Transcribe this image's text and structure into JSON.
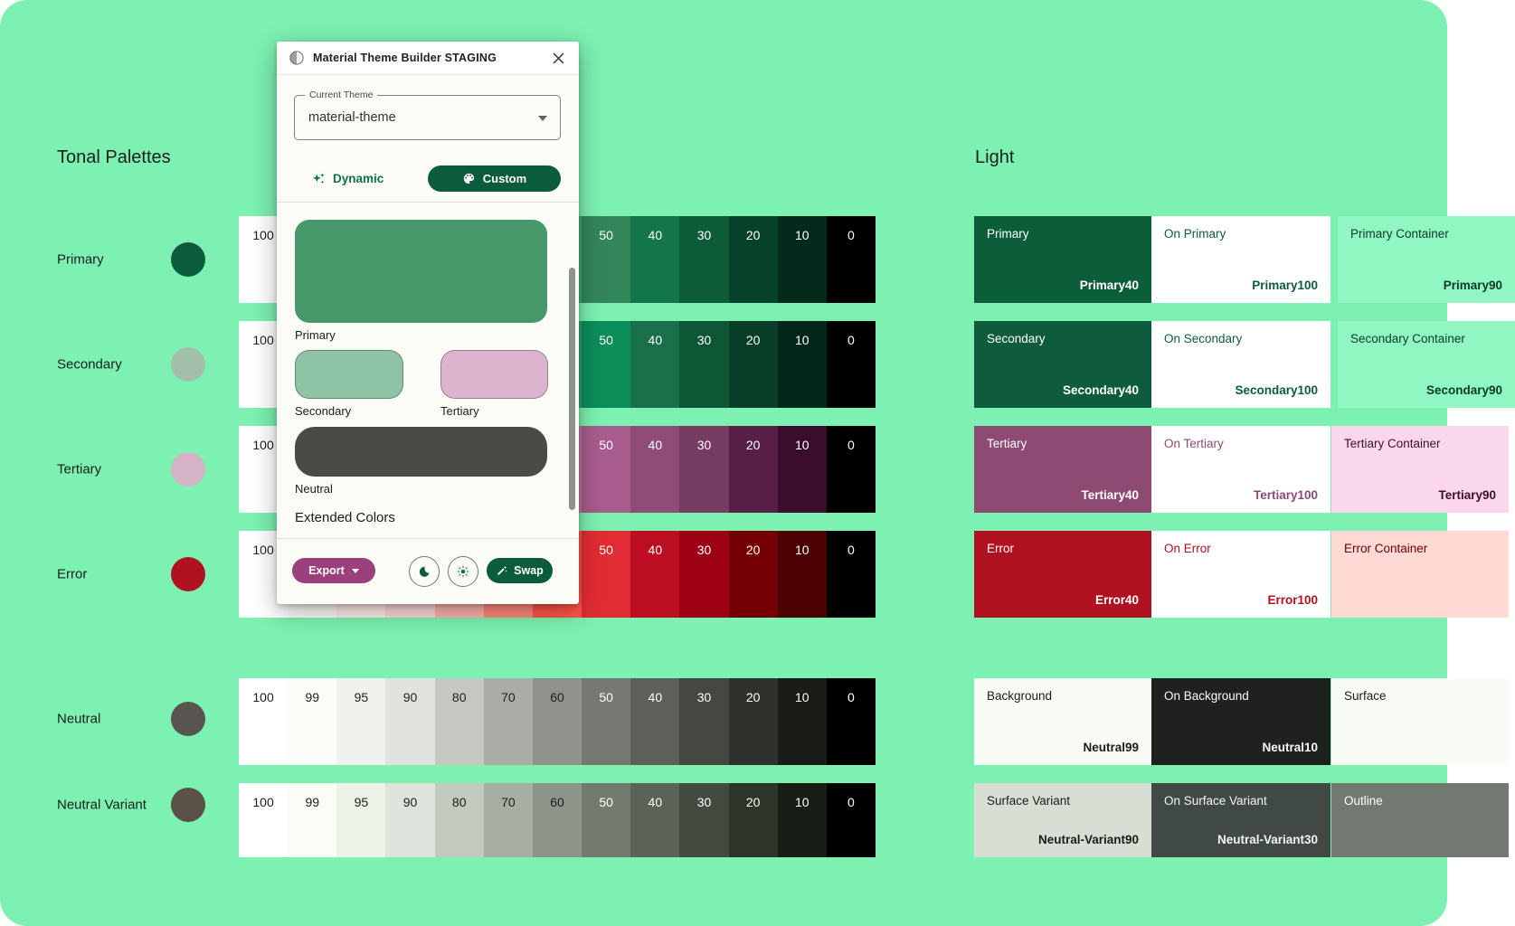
{
  "headings": {
    "tonal": "Tonal Palettes",
    "light": "Light"
  },
  "tones": [
    "100",
    "99",
    "95",
    "90",
    "80",
    "70",
    "60",
    "50",
    "40",
    "30",
    "20",
    "10",
    "0"
  ],
  "palettes": [
    {
      "label": "Primary",
      "dot": "#0B5D3B",
      "colors": [
        "#FFFFFF",
        "#F6FFF2",
        "#DCF7E3",
        "#AEF2C8",
        "#7DE5A9",
        "#57C98B",
        "#3AAD74",
        "#338659",
        "#13754A",
        "#0C5B39",
        "#06422A",
        "#032A1B",
        "#000000"
      ]
    },
    {
      "label": "Secondary",
      "dot": "#A3BFAA",
      "colors": [
        "#FFFFFF",
        "#F6FFF2",
        "#DFF6E5",
        "#BCEECC",
        "#93D8AD",
        "#66BD8C",
        "#2FA571",
        "#0C8E5B",
        "#19704A",
        "#0D5737",
        "#083E27",
        "#03271A",
        "#000000"
      ]
    },
    {
      "label": "Tertiary",
      "dot": "#D3B3C5",
      "colors": [
        "#FFFFFF",
        "#FFF5FA",
        "#FFE4F3",
        "#FFD4EC",
        "#F0B0D8",
        "#D394BC",
        "#BD78A5",
        "#A85D8E",
        "#8F4C78",
        "#763B61",
        "#571F45",
        "#3A0D2C",
        "#000000"
      ]
    },
    {
      "label": "Error",
      "dot": "#B11221",
      "colors": [
        "#FFFFFF",
        "#FFFBFA",
        "#FFEDEA",
        "#FFDAD6",
        "#FFB4AB",
        "#FF897D",
        "#FF5449",
        "#E22C33",
        "#BC0D23",
        "#9C0012",
        "#740006",
        "#4B0002",
        "#000000"
      ]
    },
    {
      "label": "Neutral",
      "dot": "#595551",
      "colors": [
        "#FFFFFF",
        "#FBFDF8",
        "#F0F1EC",
        "#E2E3DE",
        "#C6C7C1",
        "#ABACA6",
        "#91928C",
        "#777871",
        "#5E5F59",
        "#464741",
        "#30312C",
        "#1B1C18",
        "#000000"
      ]
    },
    {
      "label": "Neutral Variant",
      "dot": "#5B5146",
      "colors": [
        "#FFFFFF",
        "#F9FDF6",
        "#EDF2E9",
        "#DEE4DB",
        "#C2C9BF",
        "#A7AEA3",
        "#8D9489",
        "#737B6F",
        "#5B6257",
        "#434A3F",
        "#2D342A",
        "#181E15",
        "#000000"
      ]
    }
  ],
  "scheme": {
    "rows": [
      {
        "cells": [
          {
            "title": "Primary",
            "tone": "Primary40",
            "bg": "#0C5E3B",
            "fg": "#FFFFFF"
          },
          {
            "title": "On Primary",
            "tone": "Primary100",
            "bg": "#FFFFFF",
            "fg": "#0B5D3B"
          },
          {
            "title": "Primary Container",
            "tone": "Primary90",
            "bg": "#90F6C2",
            "fg": "#0A3B25"
          }
        ]
      },
      {
        "cells": [
          {
            "title": "Secondary",
            "tone": "Secondary40",
            "bg": "#0E5C3D",
            "fg": "#FFFFFF"
          },
          {
            "title": "On Secondary",
            "tone": "Secondary100",
            "bg": "#FFFFFF",
            "fg": "#0B5D3B"
          },
          {
            "title": "Secondary Container",
            "tone": "Secondary90",
            "bg": "#90F6C2",
            "fg": "#0A3B25"
          }
        ]
      },
      {
        "cells": [
          {
            "title": "Tertiary",
            "tone": "Tertiary40",
            "bg": "#8D4A73",
            "fg": "#FFFFFF"
          },
          {
            "title": "On Tertiary",
            "tone": "Tertiary100",
            "bg": "#FFFFFF",
            "fg": "#8D4A73"
          },
          {
            "title": "Tertiary Container",
            "tone": "Tertiary90",
            "bg": "#FBD7EB",
            "fg": "#3E0F2E"
          }
        ]
      },
      {
        "cells": [
          {
            "title": "Error",
            "tone": "Error40",
            "bg": "#B11221",
            "fg": "#FFFFFF"
          },
          {
            "title": "On Error",
            "tone": "Error100",
            "bg": "#FFFFFF",
            "fg": "#B11221"
          },
          {
            "title": "Error Container",
            "tone": "",
            "bg": "#FFD9D3",
            "fg": "#67000B"
          }
        ]
      },
      {
        "cells": [
          {
            "title": "Background",
            "tone": "Neutral99",
            "bg": "#F8FCF4",
            "fg": "#1A1C19"
          },
          {
            "title": "On Background",
            "tone": "Neutral10",
            "bg": "#1E211D",
            "fg": "#FAFAF8"
          },
          {
            "title": "Surface",
            "tone": "",
            "bg": "#F8FCF4",
            "fg": "#1A1C19"
          }
        ]
      },
      {
        "cells": [
          {
            "title": "Surface Variant",
            "tone": "Neutral-Variant90",
            "bg": "#D9DED5",
            "fg": "#1A1C19"
          },
          {
            "title": "On Surface Variant",
            "tone": "Neutral-Variant30",
            "bg": "#414944",
            "fg": "#F4F5F2"
          },
          {
            "title": "Outline",
            "tone": "",
            "bg": "#717971",
            "fg": "#FFFFFF"
          }
        ]
      }
    ]
  },
  "dialog": {
    "title": "Material Theme Builder STAGING",
    "theme_label": "Current Theme",
    "theme_value": "material-theme",
    "tab_dynamic": "Dynamic",
    "tab_custom": "Custom",
    "cards": {
      "primary": {
        "label": "Primary",
        "color": "#47996C"
      },
      "secondary": {
        "label": "Secondary",
        "color": "#8FC3A5"
      },
      "tertiary": {
        "label": "Tertiary",
        "color": "#DDB4CE"
      },
      "neutral": {
        "label": "Neutral",
        "color": "#4A4A47"
      }
    },
    "extended_label": "Extended Colors",
    "export_label": "Export",
    "swap_label": "Swap",
    "accent_green": "#0A5C3C",
    "accent_purple": "#9C3F7D"
  }
}
